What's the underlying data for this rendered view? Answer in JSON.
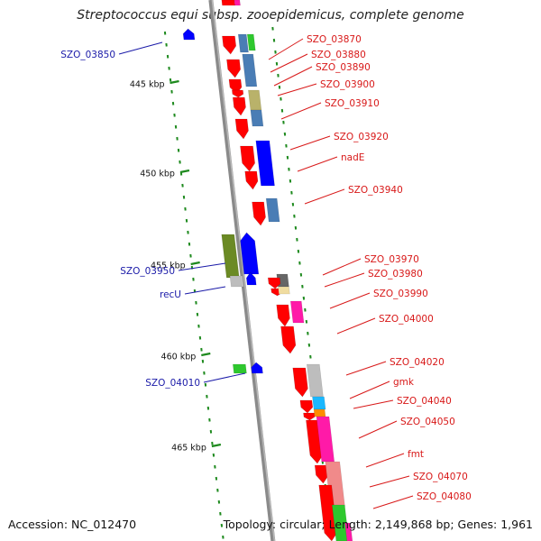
{
  "title": "Streptococcus equi subsp. zooepidemicus, complete genome",
  "footer": {
    "accession": "Accession: NC_012470",
    "topology": "Topology: circular; Length: 2,149,868 bp; Genes: 1,961"
  },
  "ticks": [
    "445 kbp",
    "450 kbp",
    "455 kbp",
    "460 kbp",
    "465 kbp"
  ],
  "labels_right": [
    "SZO_03870",
    "SZO_03880",
    "SZO_03890",
    "SZO_03900",
    "SZO_03910",
    "SZO_03920",
    "nadE",
    "SZO_03940",
    "SZO_03970",
    "SZO_03980",
    "SZO_03990",
    "SZO_04000",
    "SZO_04020",
    "gmk",
    "SZO_04040",
    "SZO_04050",
    "fmt",
    "SZO_04070",
    "SZO_04080"
  ],
  "labels_left": [
    "SZO_03850",
    "SZO_03950",
    "recU",
    "SZO_04010"
  ],
  "colors": {
    "backbone": "#8a8a8a",
    "red": "#ff0000",
    "blue": "#0000ff",
    "steel": "#4a7db5",
    "olive": "#6b8a24",
    "khaki": "#b9b26a",
    "green": "#2ec82e",
    "gray": "#bdbdbd",
    "darkgray": "#666666",
    "magenta": "#ff1aa8",
    "cyan": "#1ab8ff",
    "orange": "#ff8c00",
    "salmon": "#f08a8a",
    "tan": "#f0dca0",
    "dots": "#1e8a1e",
    "label_red": "#d81818",
    "label_blue": "#1a1aa8"
  }
}
